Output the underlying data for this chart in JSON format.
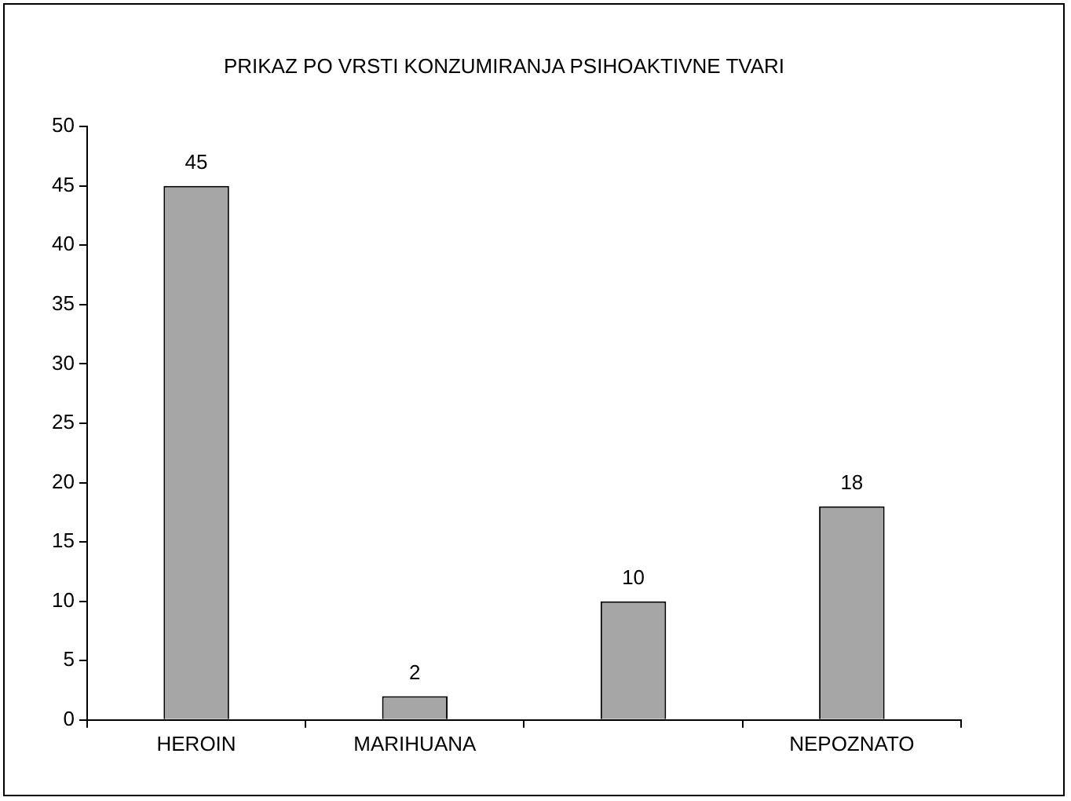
{
  "chart_data": {
    "type": "bar",
    "title": "PRIKAZ PO VRSTI KONZUMIRANJA PSIHOAKTIVNE TVARI",
    "categories": [
      "HEROIN",
      "MARIHUANA",
      null,
      "NEPOZNATO"
    ],
    "values": [
      45,
      2,
      10,
      18
    ],
    "color": "#a6a6a6",
    "ylim": [
      0,
      50
    ],
    "yticks": [
      0,
      5,
      10,
      15,
      20,
      25,
      30,
      35,
      40,
      45,
      50
    ],
    "grid": false,
    "legend": false,
    "data_labels": true
  }
}
